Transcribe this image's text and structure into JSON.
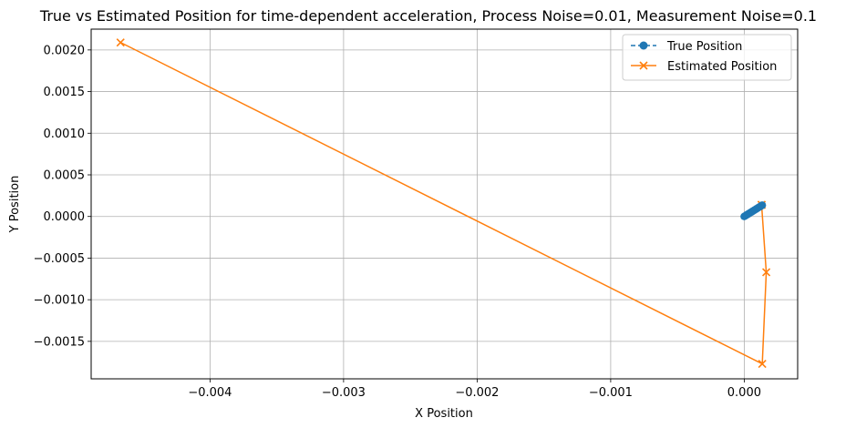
{
  "chart_data": {
    "type": "line",
    "title": "True vs Estimated Position for time-dependent acceleration, Process Noise=0.01, Measurement Noise=0.1",
    "xlabel": "X Position",
    "ylabel": "Y Position",
    "xlim": [
      -0.00489,
      0.0004
    ],
    "ylim": [
      -0.00195,
      0.00225
    ],
    "grid": true,
    "legend_position": "top-right",
    "xticks": [
      {
        "value": -0.004,
        "label": "−0.004"
      },
      {
        "value": -0.003,
        "label": "−0.003"
      },
      {
        "value": -0.002,
        "label": "−0.002"
      },
      {
        "value": -0.001,
        "label": "−0.001"
      },
      {
        "value": 0.0,
        "label": "0.000"
      }
    ],
    "yticks": [
      {
        "value": 0.002,
        "label": "0.0020"
      },
      {
        "value": 0.0015,
        "label": "0.0015"
      },
      {
        "value": 0.001,
        "label": "0.0010"
      },
      {
        "value": 0.0005,
        "label": "0.0005"
      },
      {
        "value": 0.0,
        "label": "0.0000"
      },
      {
        "value": -0.0005,
        "label": "−0.0005"
      },
      {
        "value": -0.001,
        "label": "−0.0010"
      },
      {
        "value": -0.0015,
        "label": "−0.0015"
      }
    ],
    "series": [
      {
        "name": "True Position",
        "color": "#1f77b4",
        "marker": "circle",
        "linestyle": "dashed",
        "x": [
          0.0,
          1e-05,
          2e-05,
          3e-05,
          4e-05,
          5e-05,
          6e-05,
          7e-05,
          8e-05,
          9e-05,
          0.0001,
          0.00011,
          0.00012,
          0.00013,
          0.000135
        ],
        "y": [
          0.0,
          1e-05,
          2e-05,
          3e-05,
          4e-05,
          5e-05,
          6e-05,
          7e-05,
          8e-05,
          9e-05,
          0.0001,
          0.00011,
          0.00012,
          0.00013,
          0.000135
        ]
      },
      {
        "name": "Estimated Position",
        "color": "#ff7f0e",
        "marker": "x",
        "linestyle": "solid",
        "x": [
          -0.00467,
          0.000135,
          0.000165,
          0.00013,
          0.00013
        ],
        "y": [
          0.00209,
          -0.00177,
          -0.00067,
          0.00014,
          0.00014
        ]
      }
    ]
  }
}
